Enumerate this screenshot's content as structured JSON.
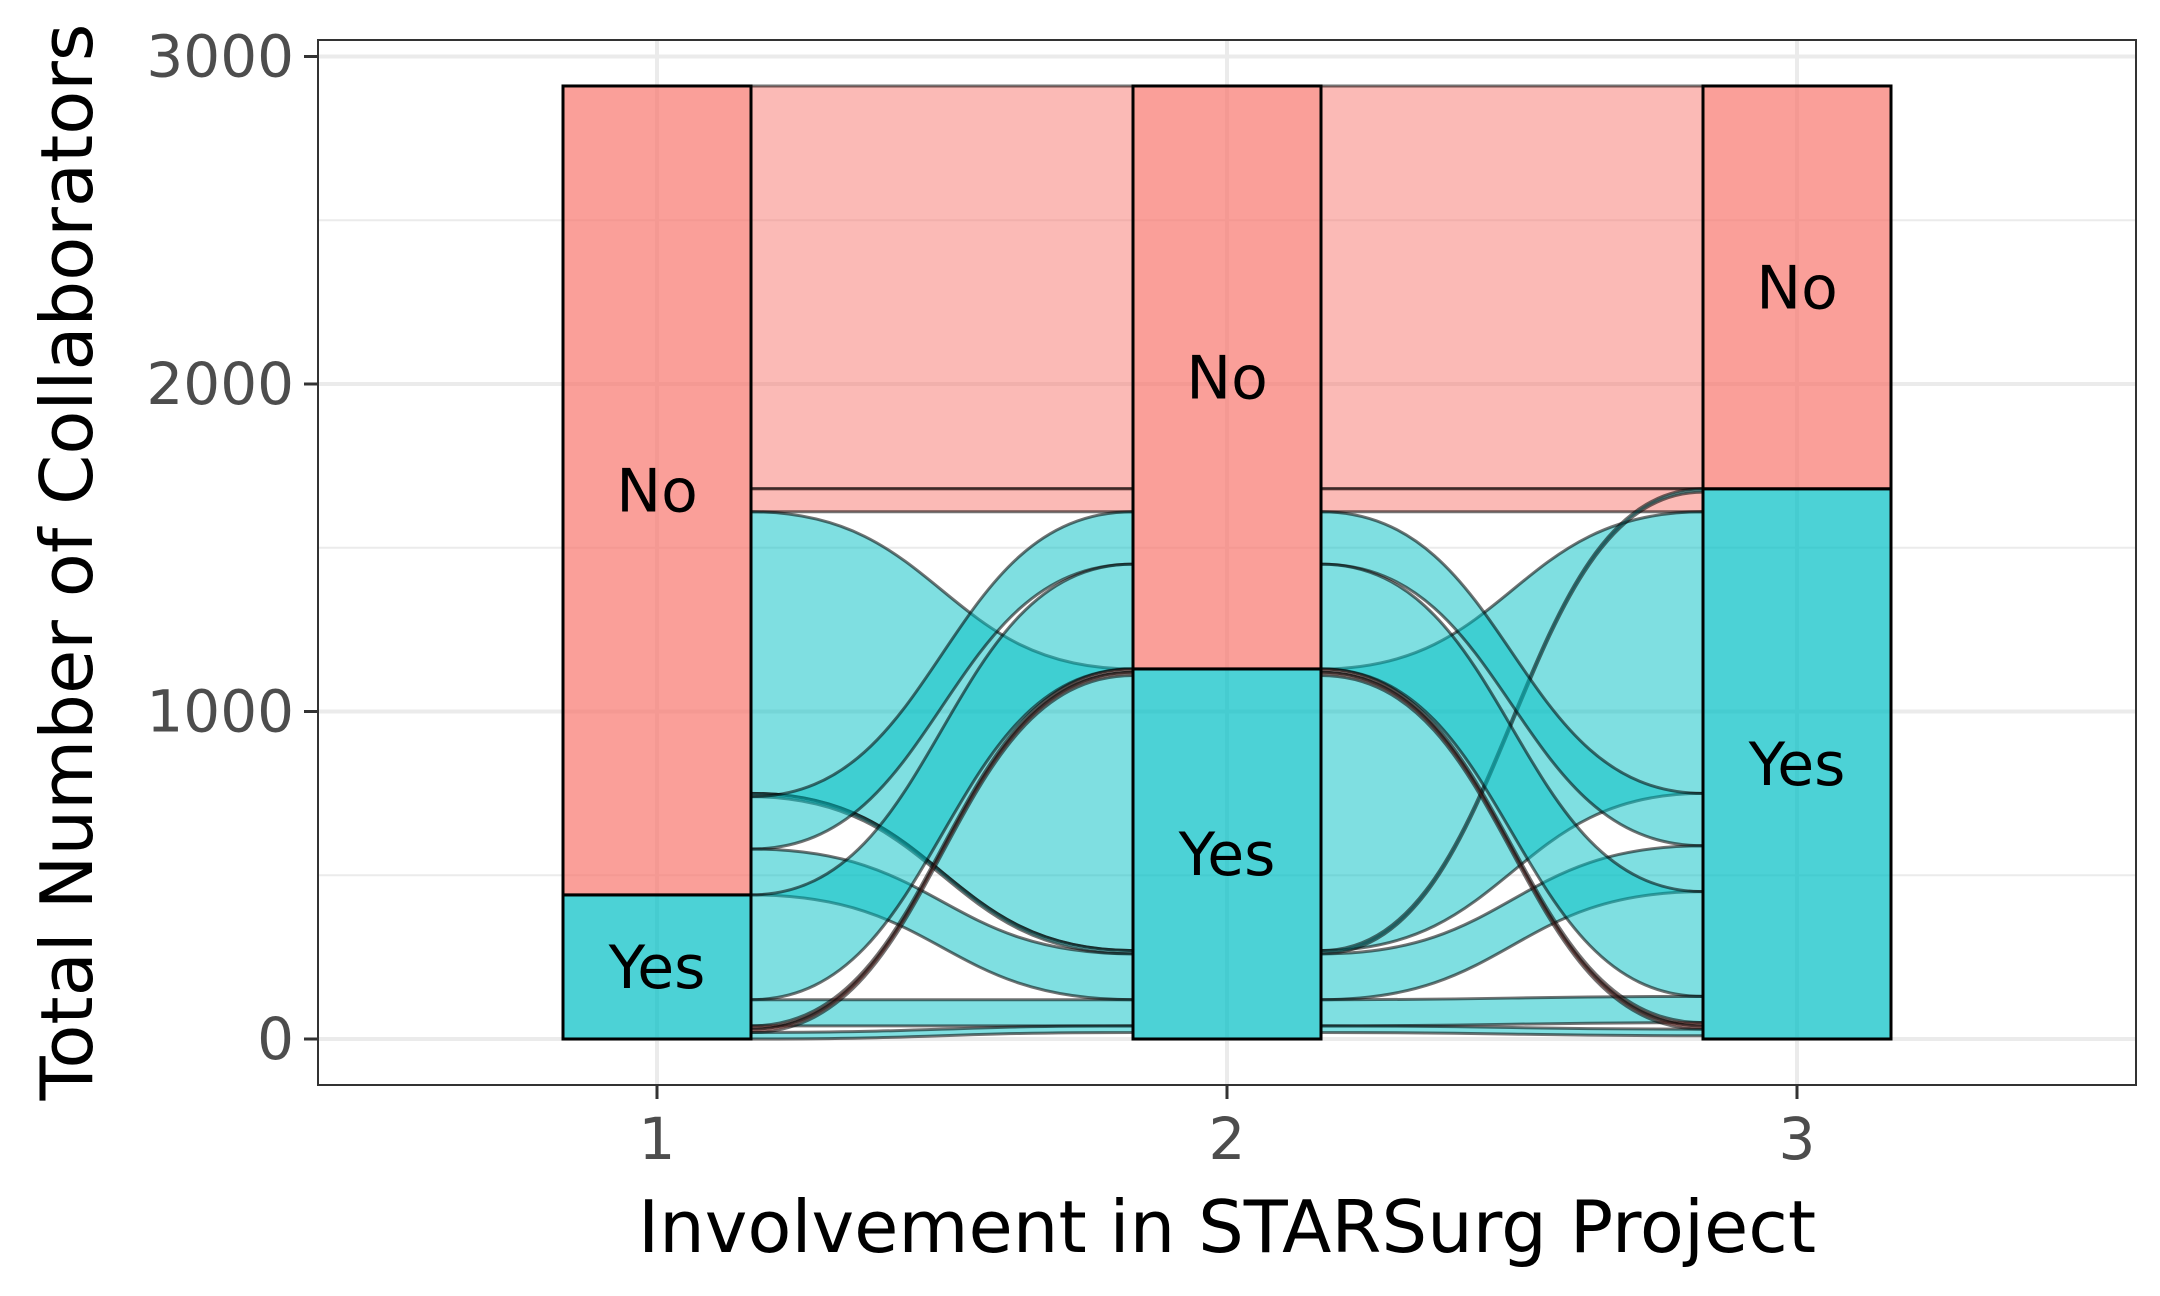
{
  "chart_data": {
    "type": "alluvial",
    "title": "",
    "xlabel": "Involvement in STARSurg Project",
    "ylabel": "Total Number of Collaborators",
    "x": [
      "1",
      "2",
      "3"
    ],
    "ylim": [
      -140,
      3000
    ],
    "yticks": [
      0,
      1000,
      2000,
      3000
    ],
    "grid": true,
    "legend": "none",
    "colors": {
      "No": "#F8766D",
      "Yes": "#00BFC4"
    },
    "strata": [
      {
        "x": "1",
        "segments": [
          {
            "label": "Yes",
            "value": 440
          },
          {
            "label": "No",
            "value": 2470
          }
        ]
      },
      {
        "x": "2",
        "segments": [
          {
            "label": "Yes",
            "value": 1130
          },
          {
            "label": "No",
            "value": 1780
          }
        ]
      },
      {
        "x": "3",
        "segments": [
          {
            "label": "Yes",
            "value": 1680
          },
          {
            "label": "No",
            "value": 1230
          }
        ]
      }
    ],
    "flows": [
      {
        "path": [
          "No",
          "No",
          "No"
        ],
        "value": 1230,
        "color": "No"
      },
      {
        "path": [
          "No",
          "No",
          "Yes"
        ],
        "value": 70,
        "color": "No"
      },
      {
        "path": [
          "No",
          "Yes",
          "Yes"
        ],
        "value": 860,
        "color": "Yes"
      },
      {
        "path": [
          "No",
          "Yes",
          "No"
        ],
        "value": 10,
        "color": "Yes"
      },
      {
        "path": [
          "No",
          "No",
          "Yes"
        ],
        "value": 160,
        "color": "Yes"
      },
      {
        "path": [
          "No",
          "Yes",
          "Yes"
        ],
        "value": 140,
        "color": "Yes"
      },
      {
        "path": [
          "Yes",
          "No",
          "Yes"
        ],
        "value": 320,
        "color": "Yes"
      },
      {
        "path": [
          "Yes",
          "Yes",
          "Yes"
        ],
        "value": 80,
        "color": "Yes"
      },
      {
        "path": [
          "Yes",
          "No",
          "Yes"
        ],
        "value": 10,
        "color": "No"
      },
      {
        "path": [
          "Yes",
          "No",
          "Yes"
        ],
        "value": 10,
        "color": "No"
      },
      {
        "path": [
          "Yes",
          "Yes",
          "Yes"
        ],
        "value": 20,
        "color": "Yes"
      }
    ]
  }
}
